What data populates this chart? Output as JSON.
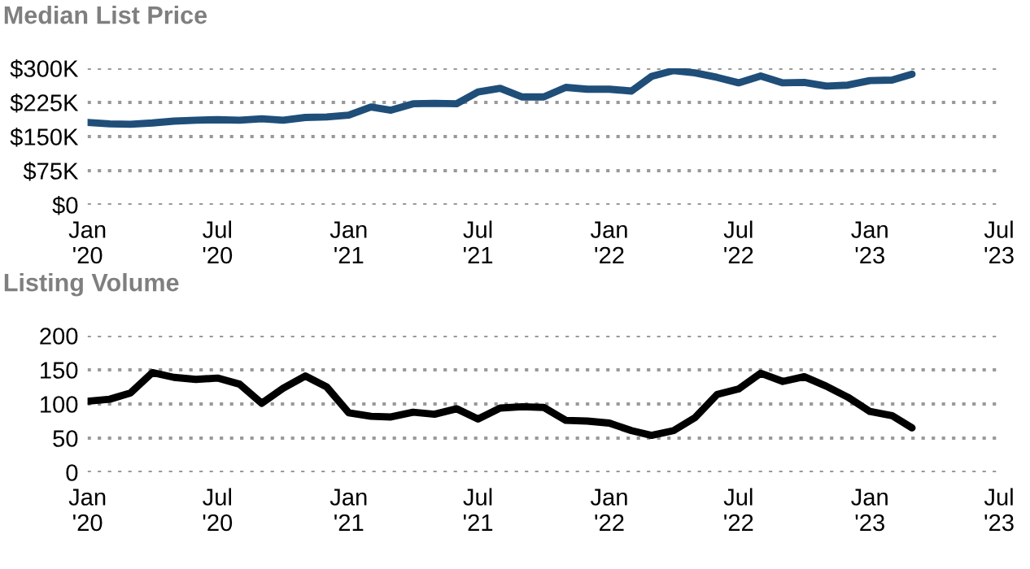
{
  "chart_data": [
    {
      "type": "line",
      "title": "Median List Price",
      "grid": "y",
      "line_style": "solid",
      "x": [
        "2020-01",
        "2020-02",
        "2020-03",
        "2020-04",
        "2020-05",
        "2020-06",
        "2020-07",
        "2020-08",
        "2020-09",
        "2020-10",
        "2020-11",
        "2020-12",
        "2021-01",
        "2021-02",
        "2021-03",
        "2021-04",
        "2021-05",
        "2021-06",
        "2021-07",
        "2021-08",
        "2021-09",
        "2021-10",
        "2021-11",
        "2021-12",
        "2022-01",
        "2022-02",
        "2022-03",
        "2022-04",
        "2022-05",
        "2022-06",
        "2022-07",
        "2022-08",
        "2022-09",
        "2022-10",
        "2022-11",
        "2022-12",
        "2023-01",
        "2023-02",
        "2023-03"
      ],
      "series": [
        {
          "color": "#1f4e79",
          "values": [
            181000,
            178000,
            177000,
            180000,
            184000,
            186000,
            187000,
            186000,
            189000,
            186000,
            192000,
            193000,
            197000,
            215000,
            208000,
            222000,
            223000,
            222000,
            248000,
            256000,
            237000,
            237000,
            258000,
            254000,
            254000,
            250000,
            282000,
            295000,
            290000,
            280000,
            268000,
            283000,
            268000,
            269000,
            261000,
            263000,
            273000,
            274000,
            287000
          ]
        }
      ],
      "xlim": [
        "2020-01",
        "2023-07"
      ],
      "xticks": [
        {
          "value": "2020-01",
          "label": "Jan\n'20"
        },
        {
          "value": "2020-07",
          "label": "Jul\n'20"
        },
        {
          "value": "2021-01",
          "label": "Jan\n'21"
        },
        {
          "value": "2021-07",
          "label": "Jul\n'21"
        },
        {
          "value": "2022-01",
          "label": "Jan\n'22"
        },
        {
          "value": "2022-07",
          "label": "Jul\n'22"
        },
        {
          "value": "2023-01",
          "label": "Jan\n'23"
        },
        {
          "value": "2023-07",
          "label": "Jul\n'23"
        }
      ],
      "ylim": [
        0,
        300000
      ],
      "yticks": [
        {
          "value": 0,
          "label": "$0"
        },
        {
          "value": 75000,
          "label": "$75K"
        },
        {
          "value": 150000,
          "label": "$150K"
        },
        {
          "value": 225000,
          "label": "$225K"
        },
        {
          "value": 300000,
          "label": "$300K"
        }
      ]
    },
    {
      "type": "line",
      "title": "Listing Volume",
      "grid": "y",
      "line_style": "solid",
      "x": [
        "2020-01",
        "2020-02",
        "2020-03",
        "2020-04",
        "2020-05",
        "2020-06",
        "2020-07",
        "2020-08",
        "2020-09",
        "2020-10",
        "2020-11",
        "2020-12",
        "2021-01",
        "2021-02",
        "2021-03",
        "2021-04",
        "2021-05",
        "2021-06",
        "2021-07",
        "2021-08",
        "2021-09",
        "2021-10",
        "2021-11",
        "2021-12",
        "2022-01",
        "2022-02",
        "2022-03",
        "2022-04",
        "2022-05",
        "2022-06",
        "2022-07",
        "2022-08",
        "2022-09",
        "2022-10",
        "2022-11",
        "2022-12",
        "2023-01",
        "2023-02",
        "2023-03"
      ],
      "series": [
        {
          "color": "#000000",
          "values": [
            104,
            107,
            116,
            146,
            139,
            136,
            138,
            129,
            101,
            123,
            141,
            125,
            87,
            82,
            81,
            88,
            85,
            93,
            78,
            94,
            96,
            95,
            76,
            75,
            72,
            61,
            54,
            61,
            80,
            114,
            122,
            145,
            133,
            140,
            126,
            110,
            89,
            83,
            65
          ]
        }
      ],
      "xlim": [
        "2020-01",
        "2023-07"
      ],
      "xticks": [
        {
          "value": "2020-01",
          "label": "Jan\n'20"
        },
        {
          "value": "2020-07",
          "label": "Jul\n'20"
        },
        {
          "value": "2021-01",
          "label": "Jan\n'21"
        },
        {
          "value": "2021-07",
          "label": "Jul\n'21"
        },
        {
          "value": "2022-01",
          "label": "Jan\n'22"
        },
        {
          "value": "2022-07",
          "label": "Jul\n'22"
        },
        {
          "value": "2023-01",
          "label": "Jan\n'23"
        },
        {
          "value": "2023-07",
          "label": "Jul\n'23"
        }
      ],
      "ylim": [
        0,
        200
      ],
      "yticks": [
        0,
        50,
        100,
        150,
        200
      ]
    }
  ]
}
